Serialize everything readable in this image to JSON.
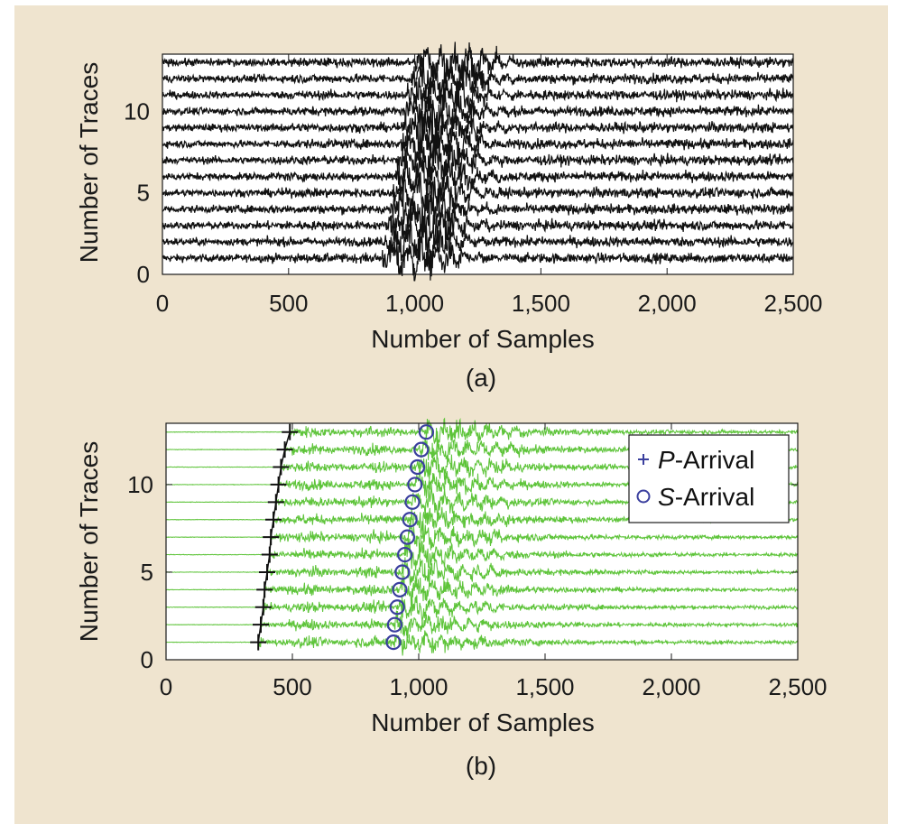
{
  "colors": {
    "background": "#efe4cf",
    "plot_bg": "#ffffff",
    "trace_a": "#111111",
    "trace_b": "#5ec43a",
    "p_marker": "#111111",
    "s_marker": "#3a3f9e",
    "legend_plus": "#3a3f9e",
    "axis": "#1a1a1a"
  },
  "chart_data": [
    {
      "type": "line",
      "panel_label": "(a)",
      "xlabel": "Number of Samples",
      "ylabel": "Number of Traces",
      "xlim": [
        0,
        2500
      ],
      "ylim": [
        0,
        13.5
      ],
      "xticks": [
        0,
        500,
        1000,
        1500,
        2000,
        2500
      ],
      "xtick_labels": [
        "0",
        "500",
        "1,000",
        "1,500",
        "2,000",
        "2,500"
      ],
      "yticks": [
        0,
        5,
        10
      ],
      "ytick_labels": [
        "0",
        "5",
        "10"
      ],
      "grid": false,
      "trace_count": 13,
      "trace_offsets": [
        1,
        2,
        3,
        4,
        5,
        6,
        7,
        8,
        9,
        10,
        11,
        12,
        13
      ],
      "noisy_background": true,
      "s_arrival": [
        900,
        910,
        920,
        930,
        940,
        950,
        960,
        970,
        980,
        990,
        1000,
        1010,
        1030
      ]
    },
    {
      "type": "line",
      "panel_label": "(b)",
      "xlabel": "Number of Samples",
      "ylabel": "Number of Traces",
      "xlim": [
        0,
        2500
      ],
      "ylim": [
        0,
        13.5
      ],
      "xticks": [
        0,
        500,
        1000,
        1500,
        2000,
        2500
      ],
      "xtick_labels": [
        "0",
        "500",
        "1,000",
        "1,500",
        "2,000",
        "2,500"
      ],
      "yticks": [
        0,
        5,
        10
      ],
      "ytick_labels": [
        "0",
        "5",
        "10"
      ],
      "grid": false,
      "trace_count": 13,
      "trace_offsets": [
        1,
        2,
        3,
        4,
        5,
        6,
        7,
        8,
        9,
        10,
        11,
        12,
        13
      ],
      "noisy_background": false,
      "legend": {
        "position": "top-right",
        "entries": [
          {
            "marker": "+",
            "italic": "P",
            "text": "-Arrival"
          },
          {
            "marker": "o",
            "italic": "S",
            "text": "-Arrival"
          }
        ]
      },
      "p_arrival": [
        365,
        375,
        385,
        390,
        400,
        410,
        415,
        425,
        435,
        445,
        455,
        470,
        490
      ],
      "s_arrival": [
        900,
        905,
        915,
        925,
        935,
        945,
        955,
        965,
        975,
        985,
        995,
        1010,
        1030
      ]
    }
  ]
}
